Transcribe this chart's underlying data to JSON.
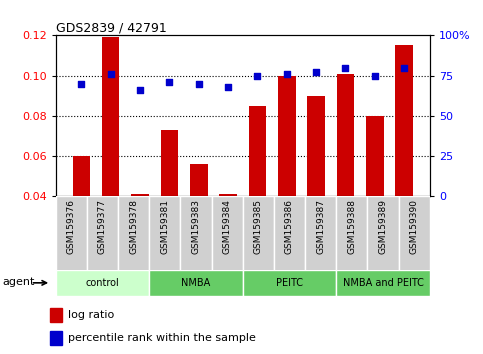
{
  "title": "GDS2839 / 42791",
  "samples": [
    "GSM159376",
    "GSM159377",
    "GSM159378",
    "GSM159381",
    "GSM159383",
    "GSM159384",
    "GSM159385",
    "GSM159386",
    "GSM159387",
    "GSM159388",
    "GSM159389",
    "GSM159390"
  ],
  "log_ratio": [
    0.06,
    0.119,
    0.041,
    0.073,
    0.056,
    0.041,
    0.085,
    0.1,
    0.09,
    0.101,
    0.08,
    0.115
  ],
  "percentile_rank": [
    70,
    76,
    66,
    71,
    70,
    68,
    75,
    76,
    77,
    80,
    75,
    80
  ],
  "bar_color": "#cc0000",
  "dot_color": "#0000cc",
  "ylim_left": [
    0.04,
    0.12
  ],
  "ylim_right": [
    0,
    100
  ],
  "yticks_left": [
    0.04,
    0.06,
    0.08,
    0.1,
    0.12
  ],
  "yticks_right": [
    0,
    25,
    50,
    75,
    100
  ],
  "yticklabels_right": [
    "0",
    "25",
    "50",
    "75",
    "100%"
  ],
  "dotted_lines": [
    0.06,
    0.08,
    0.1
  ],
  "groups": [
    {
      "label": "control",
      "start": 0,
      "end": 3,
      "color": "#ccffcc"
    },
    {
      "label": "NMBA",
      "start": 3,
      "end": 6,
      "color": "#66cc66"
    },
    {
      "label": "PEITC",
      "start": 6,
      "end": 9,
      "color": "#66cc66"
    },
    {
      "label": "NMBA and PEITC",
      "start": 9,
      "end": 12,
      "color": "#66cc66"
    }
  ],
  "sample_box_color": "#d0d0d0",
  "legend_log_ratio": "log ratio",
  "legend_percentile": "percentile rank within the sample",
  "agent_label": "agent"
}
